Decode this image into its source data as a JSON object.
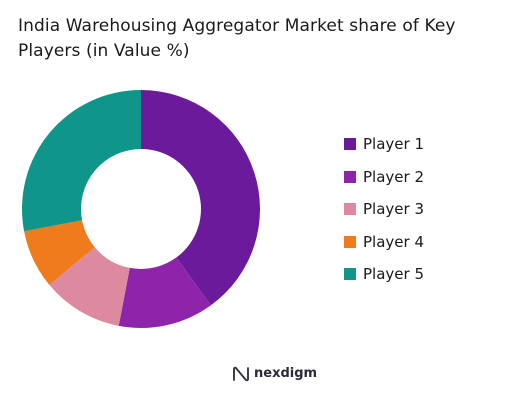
{
  "chart_data": {
    "type": "pie",
    "title": "India Warehousing Aggregator Market share of Key Players (in Value %)",
    "categories": [
      "Player 1",
      "Player 2",
      "Player 3",
      "Player 4",
      "Player 5"
    ],
    "values": [
      40,
      13,
      11,
      8,
      28
    ],
    "colors": [
      "#6a1a9a",
      "#8e24aa",
      "#dd8aa0",
      "#f07b1c",
      "#0f958a"
    ],
    "donut": true,
    "legend_position": "right"
  },
  "brand": {
    "name": "nexdigm",
    "icon": "nexdigm-logo-icon"
  }
}
